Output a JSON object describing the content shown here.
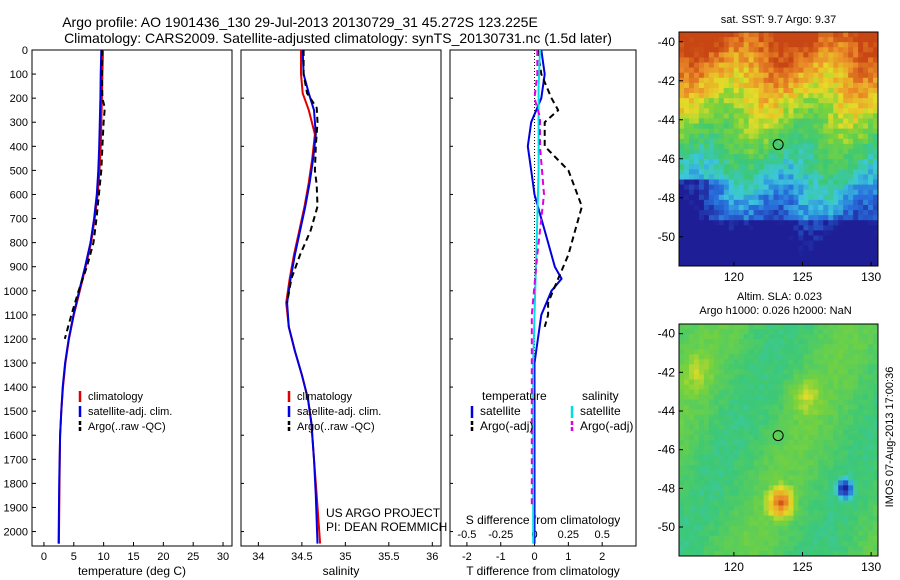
{
  "header": {
    "line1": "Argo profile: AO 1901436_130 29-Jul-2013 20130729_31 45.272S 123.225E",
    "line2": "Climatology: CARS2009. Satellite-adjusted climatology: synTS_20130731.nc (1.5d later)"
  },
  "side_label": "IMOS 07-Aug-2013 17:00:36",
  "project_note": {
    "line1": "US ARGO PROJECT",
    "line2": "PI: DEAN ROEMMICH"
  },
  "colors": {
    "climatology": "#e00000",
    "satellite": "#0000e0",
    "argo": "#000000",
    "satellite_salinity": "#00e0e0",
    "argo_salinity_diff": "#e000e0"
  },
  "chart_data": [
    {
      "type": "line",
      "xlabel": "temperature (deg C)",
      "ylabel": "",
      "xlim": [
        -2,
        31.5
      ],
      "ylim": [
        2060,
        0
      ],
      "xticks": [
        0,
        5,
        10,
        15,
        20,
        25,
        30
      ],
      "yticks": [
        0,
        100,
        200,
        300,
        400,
        500,
        600,
        700,
        800,
        900,
        1000,
        1100,
        1200,
        1300,
        1400,
        1500,
        1600,
        1700,
        1800,
        1900,
        2000
      ],
      "legend": [
        "climatology",
        "satellite-adj. clim.",
        "Argo(..raw -QC)"
      ],
      "legend_position": "lower-right",
      "series": [
        {
          "name": "climatology",
          "color": "#e00000",
          "dash": "",
          "x": [
            9.9,
            9.8,
            9.7,
            9.6,
            9.5,
            9.3,
            9.0,
            8.5,
            7.9,
            7.0,
            6.0,
            5.0,
            4.2,
            3.6,
            3.2,
            2.9,
            2.7,
            2.6,
            2.5
          ],
          "y": [
            0,
            100,
            200,
            300,
            400,
            500,
            600,
            700,
            800,
            900,
            1000,
            1100,
            1200,
            1300,
            1400,
            1500,
            1600,
            1800,
            2050
          ]
        },
        {
          "name": "satellite-adj. clim.",
          "color": "#0000e0",
          "dash": "",
          "x": [
            9.6,
            9.5,
            9.45,
            9.35,
            9.25,
            9.1,
            8.85,
            8.4,
            7.8,
            6.9,
            5.9,
            4.95,
            4.15,
            3.55,
            3.15,
            2.9,
            2.7,
            2.55,
            2.45
          ],
          "y": [
            0,
            100,
            200,
            300,
            400,
            500,
            600,
            700,
            800,
            900,
            1000,
            1100,
            1200,
            1300,
            1400,
            1500,
            1600,
            1800,
            2050
          ]
        },
        {
          "name": "Argo(..raw -QC)",
          "color": "#000000",
          "dash": "6,4",
          "x": [
            9.7,
            9.7,
            9.8,
            10.2,
            10.0,
            9.8,
            9.6,
            9.2,
            8.8,
            8.3,
            7.2,
            5.8,
            4.6,
            3.5
          ],
          "y": [
            0,
            100,
            200,
            240,
            300,
            400,
            500,
            600,
            700,
            800,
            900,
            1000,
            1100,
            1200
          ]
        }
      ]
    },
    {
      "type": "line",
      "xlabel": "salinity",
      "ylabel": "",
      "xlim": [
        33.8,
        36.1
      ],
      "ylim": [
        2060,
        0
      ],
      "xticks": [
        34,
        34.5,
        35,
        35.5,
        36
      ],
      "xticklabels": [
        "34",
        "34.5",
        "35",
        "35.5",
        "36"
      ],
      "legend": [
        "climatology",
        "satellite-adj. clim.",
        "Argo(..raw -QC)"
      ],
      "legend_position": "lower-right",
      "series": [
        {
          "name": "climatology",
          "color": "#e00000",
          "dash": "",
          "x": [
            34.49,
            34.49,
            34.51,
            34.58,
            34.65,
            34.62,
            34.58,
            34.53,
            34.47,
            34.41,
            34.36,
            34.32,
            34.35,
            34.42,
            34.5,
            34.57,
            34.61,
            34.64,
            34.67,
            34.71
          ],
          "y": [
            0,
            100,
            180,
            250,
            350,
            450,
            550,
            650,
            750,
            850,
            950,
            1050,
            1150,
            1250,
            1350,
            1450,
            1550,
            1700,
            1850,
            2050
          ]
        },
        {
          "name": "satellite-adj. clim.",
          "color": "#0000e0",
          "dash": "",
          "x": [
            34.51,
            34.52,
            34.58,
            34.64,
            34.66,
            34.63,
            34.59,
            34.54,
            34.48,
            34.42,
            34.37,
            34.33,
            34.35,
            34.42,
            34.5,
            34.57,
            34.61,
            34.64,
            34.66,
            34.68
          ],
          "y": [
            0,
            100,
            180,
            250,
            350,
            450,
            550,
            650,
            750,
            850,
            950,
            1050,
            1150,
            1250,
            1350,
            1450,
            1550,
            1700,
            1850,
            2050
          ]
        },
        {
          "name": "Argo(..raw -QC)",
          "color": "#000000",
          "dash": "6,4",
          "x": [
            34.52,
            34.52,
            34.56,
            34.67,
            34.68,
            34.66,
            34.65,
            34.67,
            34.68,
            34.6,
            34.48,
            34.38,
            34.33
          ],
          "y": [
            0,
            100,
            180,
            240,
            300,
            400,
            500,
            560,
            650,
            750,
            850,
            950,
            1050
          ]
        }
      ]
    },
    {
      "type": "line",
      "xlabel": "T difference from climatology",
      "top_axis_label": "S difference from climatology",
      "ylabel": "",
      "xlim": [
        -2.5,
        3
      ],
      "ylim": [
        2060,
        0
      ],
      "xticks": [
        -2,
        -1,
        0,
        1,
        2
      ],
      "xticklabels": [
        "-2",
        "-1",
        "0",
        "1",
        "2"
      ],
      "top_xticks": [
        -0.5,
        -0.25,
        0,
        0.25,
        0.5
      ],
      "top_xticklabels": [
        "-0.5",
        "-0.25",
        "0",
        "0.25",
        "0.5"
      ],
      "legend_columns": [
        {
          "title": "temperature",
          "entries": [
            "satellite",
            "Argo(-adj)"
          ]
        },
        {
          "title": "salinity",
          "entries": [
            "satellite",
            "Argo(-adj)"
          ]
        }
      ],
      "legend_position": "lower-center",
      "series": [
        {
          "name": "satellite",
          "group": "temperature",
          "color": "#0000e0",
          "dash": "",
          "x": [
            0.2,
            0.3,
            0.2,
            -0.1,
            -0.2,
            -0.1,
            0.0,
            0.2,
            0.4,
            0.6,
            0.8,
            0.5,
            0.2,
            0.0,
            0.0,
            0.0
          ],
          "y": [
            0,
            100,
            200,
            300,
            400,
            500,
            600,
            700,
            800,
            900,
            950,
            1000,
            1100,
            1300,
            1600,
            2050
          ]
        },
        {
          "name": "Argo(-adj)",
          "group": "temperature",
          "color": "#000000",
          "dash": "6,4",
          "x": [
            0.1,
            0.2,
            0.5,
            0.7,
            0.3,
            0.3,
            1.0,
            1.4,
            1.2,
            1.0,
            0.7,
            0.4,
            0.4,
            0.3
          ],
          "y": [
            0,
            100,
            200,
            250,
            300,
            400,
            500,
            650,
            750,
            850,
            950,
            1050,
            1100,
            1150
          ]
        },
        {
          "name": "satellite",
          "group": "salinity",
          "color": "#00e0e0",
          "dash": "",
          "x": [
            0.04,
            0.03,
            0.03,
            0.03,
            0.02,
            0.01,
            0.0,
            -0.01,
            -0.01,
            -0.01,
            -0.01
          ],
          "y": [
            0,
            150,
            300,
            500,
            700,
            900,
            1100,
            1300,
            1500,
            1800,
            2050
          ]
        },
        {
          "name": "Argo(-adj)",
          "group": "salinity",
          "color": "#e000e0",
          "dash": "6,4",
          "x": [
            0.02,
            0.02,
            0.0,
            0.04,
            0.04,
            0.07,
            0.05,
            0.02,
            -0.02,
            -0.02,
            -0.02
          ],
          "y": [
            0,
            100,
            200,
            280,
            400,
            600,
            700,
            850,
            1100,
            1500,
            1900
          ]
        }
      ]
    },
    {
      "type": "heatmap",
      "title": "sat. SST: 9.7 Argo: 9.37",
      "xlim": [
        116,
        130.5
      ],
      "ylim": [
        -51.5,
        -39.5
      ],
      "xticks": [
        120,
        125,
        130
      ],
      "yticks": [
        -40,
        -42,
        -44,
        -46,
        -48,
        -50
      ],
      "marker": {
        "lon": 123.225,
        "lat": -45.272
      }
    },
    {
      "type": "heatmap",
      "title": "Altim. SLA: 0.023",
      "subtitle": "Argo h1000: 0.026 h2000: NaN",
      "xlim": [
        116,
        130.5
      ],
      "ylim": [
        -51.5,
        -39.5
      ],
      "xticks": [
        120,
        125,
        130
      ],
      "yticks": [
        -40,
        -42,
        -44,
        -46,
        -48,
        -50
      ],
      "marker": {
        "lon": 123.225,
        "lat": -45.272
      }
    }
  ]
}
